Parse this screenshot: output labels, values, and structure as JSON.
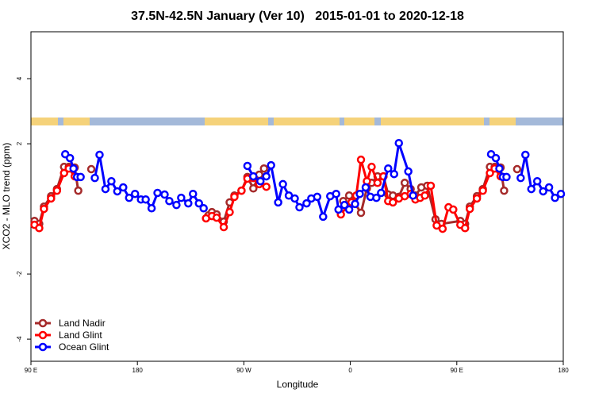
{
  "chart_data": {
    "type": "line",
    "title": "37.5N-42.5N January (Ver 10)   2015-01-01 to 2020-12-18",
    "xlabel": "Longitude",
    "ylabel": "XCO2 - MLO trend (ppm)",
    "xlim": [
      90,
      540
    ],
    "ylim": [
      -4.68,
      5.44
    ],
    "xticks": [
      {
        "value": 90,
        "label": "90 E"
      },
      {
        "value": 180,
        "label": "180"
      },
      {
        "value": 270,
        "label": "90 W"
      },
      {
        "value": 360,
        "label": "0"
      },
      {
        "value": 450,
        "label": "90 E"
      },
      {
        "value": 540,
        "label": "180"
      }
    ],
    "yticks": [
      -4,
      -2,
      2,
      4
    ],
    "legend": "bottom-left",
    "series": [
      {
        "name": "Land Nadir",
        "color": "#a52a2a",
        "x": [
          93,
          97,
          101,
          107,
          112,
          118,
          122,
          127,
          130,
          135,
          141,
          200,
          240,
          243,
          247,
          253,
          258,
          262,
          268,
          273,
          278,
          283,
          287,
          320,
          354,
          359,
          363,
          369,
          374,
          378,
          383,
          388,
          392,
          396,
          401,
          406,
          411,
          415,
          420,
          425,
          432,
          437,
          453,
          457,
          461,
          467,
          472,
          478,
          482,
          487,
          490,
          495,
          501
        ],
        "values": [
          -0.37,
          -0.46,
          0.07,
          0.39,
          0.61,
          1.29,
          1.29,
          1.27,
          0.56,
          null,
          1.22,
          null,
          -0.2,
          -0.1,
          -0.17,
          -0.39,
          0.2,
          0.41,
          0.56,
          0.98,
          0.63,
          1.05,
          1.24,
          null,
          0.24,
          0.41,
          0.22,
          -0.12,
          0.63,
          0.8,
          1.0,
          1.0,
          0.44,
          0.41,
          0.37,
          0.8,
          0.61,
          0.41,
          0.66,
          0.71,
          -0.32,
          -0.46,
          -0.37,
          -0.46,
          0.07,
          0.39,
          0.61,
          1.29,
          1.29,
          1.27,
          0.56,
          null,
          1.22
        ]
      },
      {
        "name": "Land Glint",
        "color": "#ff0000",
        "x": [
          93,
          97,
          101,
          107,
          112,
          118,
          122,
          127,
          140,
          238,
          243,
          247,
          253,
          258,
          262,
          268,
          273,
          278,
          283,
          289,
          300,
          352,
          357,
          361,
          365,
          369,
          374,
          378,
          383,
          388,
          392,
          396,
          401,
          406,
          411,
          415,
          419,
          423,
          428,
          433,
          438,
          443,
          447,
          453,
          457,
          461,
          467,
          472,
          478,
          482,
          487
        ],
        "values": [
          -0.49,
          -0.59,
          0,
          0.32,
          0.56,
          1.1,
          1.24,
          1.0,
          null,
          -0.29,
          -0.22,
          -0.27,
          -0.56,
          -0.1,
          0.37,
          0.56,
          0.93,
          0.95,
          0.76,
          0.68,
          null,
          -0.17,
          0.07,
          0.2,
          0.41,
          1.51,
          0.85,
          1.29,
          0.8,
          1.0,
          0.24,
          0.2,
          0.32,
          0.39,
          0.46,
          0.29,
          0.34,
          0.41,
          0.71,
          -0.51,
          -0.61,
          0.05,
          -0.02,
          -0.49,
          -0.59,
          0,
          0.32,
          0.56,
          1.1,
          1.24,
          1.0
        ]
      },
      {
        "name": "Ocean Glint",
        "color": "#0000ff",
        "x": [
          119,
          123,
          126,
          129,
          132,
          140,
          144,
          148,
          153,
          158,
          163,
          168,
          173,
          178,
          183,
          187,
          192,
          197,
          203,
          207,
          213,
          217,
          223,
          227,
          232,
          236,
          270,
          273,
          278,
          284,
          289,
          293,
          299,
          303,
          308,
          313,
          317,
          323,
          327,
          332,
          337,
          343,
          348,
          350,
          355,
          359,
          364,
          368,
          373,
          377,
          382,
          386,
          392,
          397,
          401,
          409,
          413,
          430,
          479,
          483,
          486,
          489,
          492,
          500,
          504,
          508,
          513,
          518,
          523,
          528,
          533,
          538
        ],
        "values": [
          1.68,
          1.56,
          1.24,
          0.98,
          0.98,
          null,
          0.95,
          1.66,
          0.61,
          0.85,
          0.54,
          0.66,
          0.34,
          0.46,
          0.29,
          0.29,
          0.02,
          0.49,
          0.44,
          0.24,
          0.12,
          0.34,
          0.17,
          0.46,
          0.17,
          0.02,
          null,
          1.32,
          1.0,
          0.85,
          1.0,
          1.34,
          0.2,
          0.76,
          0.41,
          0.32,
          0.05,
          0.17,
          0.32,
          0.37,
          -0.24,
          0.39,
          0.46,
          -0.02,
          0.12,
          -0.02,
          0.15,
          0.46,
          0.66,
          0.37,
          0.34,
          0.49,
          1.24,
          1.07,
          2.02,
          1.15,
          0.41,
          null,
          1.68,
          1.56,
          1.24,
          0.98,
          0.98,
          null,
          0.95,
          1.66,
          0.61,
          0.85,
          0.54,
          0.66,
          0.34,
          0.46
        ]
      }
    ]
  }
}
